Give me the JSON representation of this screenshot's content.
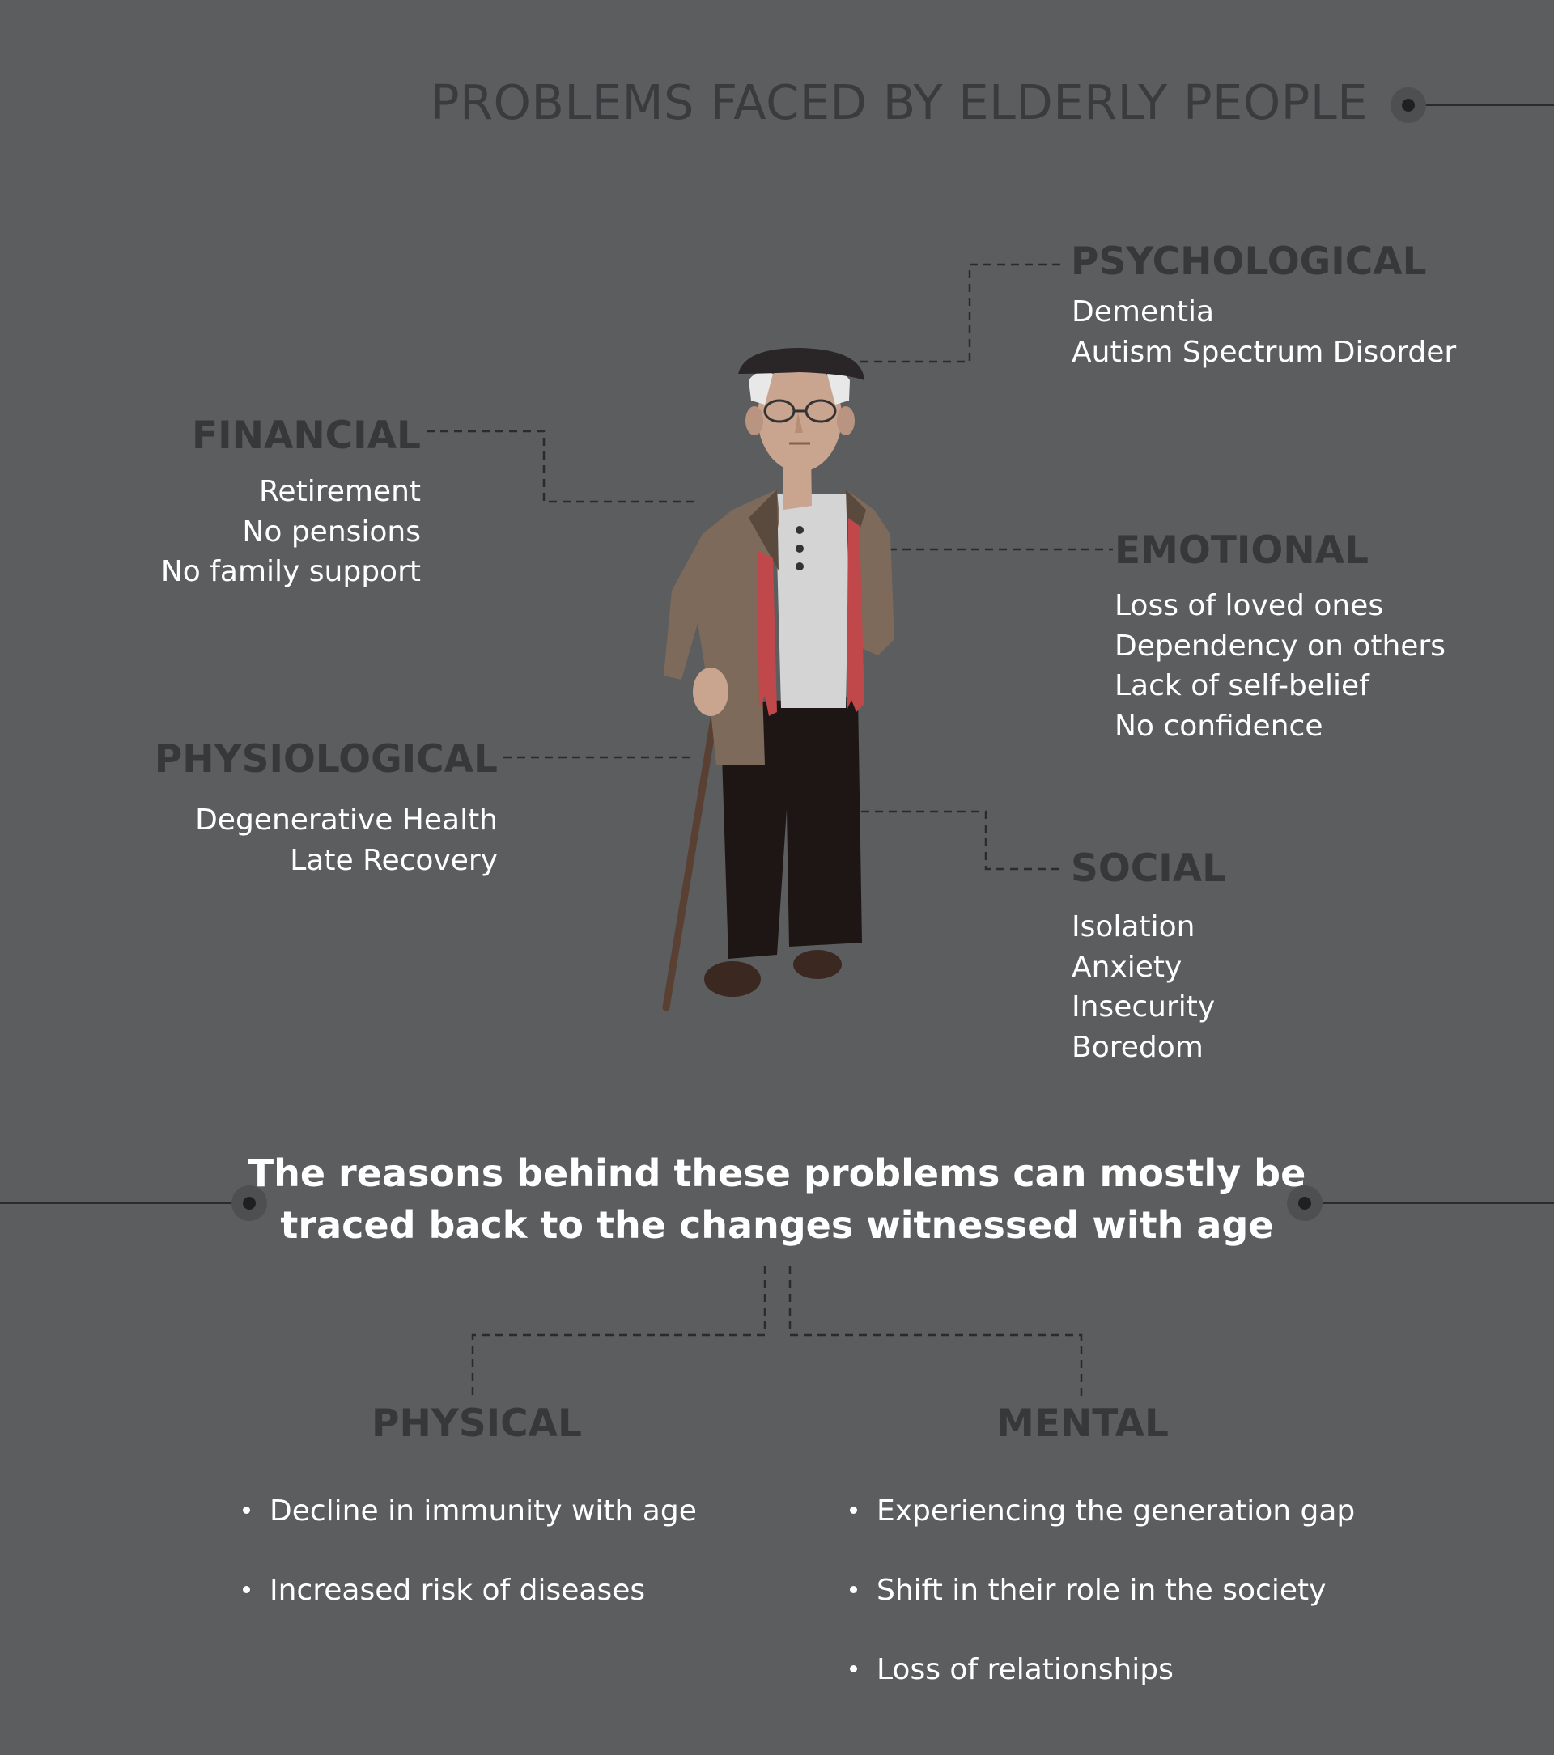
{
  "title": "PROBLEMS FACED BY ELDERLY PEOPLE",
  "categories": {
    "psychological": {
      "heading": "PSYCHOLOGICAL",
      "items": [
        "Dementia",
        "Autism Spectrum Disorder"
      ]
    },
    "financial": {
      "heading": "FINANCIAL",
      "items": [
        "Retirement",
        "No pensions",
        "No family support"
      ]
    },
    "emotional": {
      "heading": "EMOTIONAL",
      "items": [
        "Loss of loved ones",
        "Dependency on others",
        "Lack of self-belief",
        "No confidence"
      ]
    },
    "physiological": {
      "heading": "PHYSIOLOGICAL",
      "items": [
        "Degenerative Health",
        "Late Recovery"
      ]
    },
    "social": {
      "heading": "SOCIAL",
      "items": [
        "Isolation",
        "Anxiety",
        "Insecurity",
        "Boredom"
      ]
    }
  },
  "reasons_text": {
    "line1": "The reasons behind these problems can mostly be",
    "line2": "traced back to the changes witnessed with age"
  },
  "changes": {
    "physical": {
      "heading": "PHYSICAL",
      "items": [
        "Decline in immunity with age",
        "Increased risk of diseases"
      ]
    },
    "mental": {
      "heading": "MENTAL",
      "items": [
        "Experiencing the generation gap",
        "Shift in their role in the society",
        "Loss of relationships"
      ]
    }
  },
  "colors": {
    "background": "#5b5d5f",
    "heading": "#36383a",
    "text": "#ffffff",
    "connector": "#2a2b2d"
  }
}
